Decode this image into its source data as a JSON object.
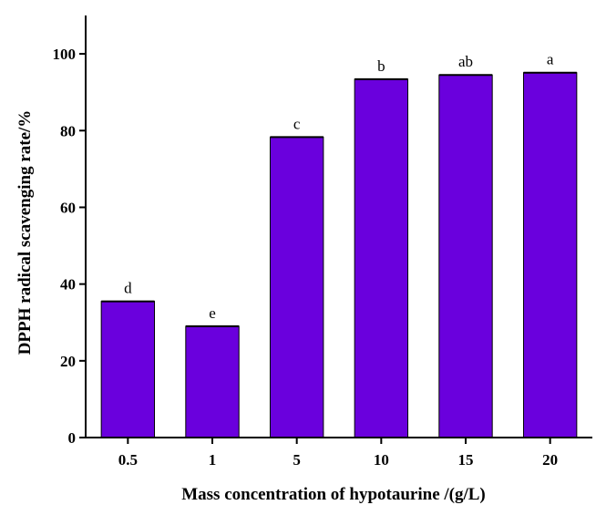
{
  "chart_data": {
    "type": "bar",
    "categories": [
      "0.5",
      "1",
      "5",
      "10",
      "15",
      "20"
    ],
    "values": [
      35.5,
      29.0,
      78.3,
      93.4,
      94.5,
      95.1
    ],
    "significance_labels": [
      "d",
      "e",
      "c",
      "b",
      "ab",
      "a"
    ],
    "xlabel": "Mass concentration of hypotaurine /(g/L)",
    "ylabel": "DPPH radical scavenging rate/%",
    "ylim": [
      0,
      110
    ],
    "yticks": [
      0,
      20,
      40,
      60,
      80,
      100
    ],
    "grid": false,
    "bar_color": "#6a00dd"
  }
}
